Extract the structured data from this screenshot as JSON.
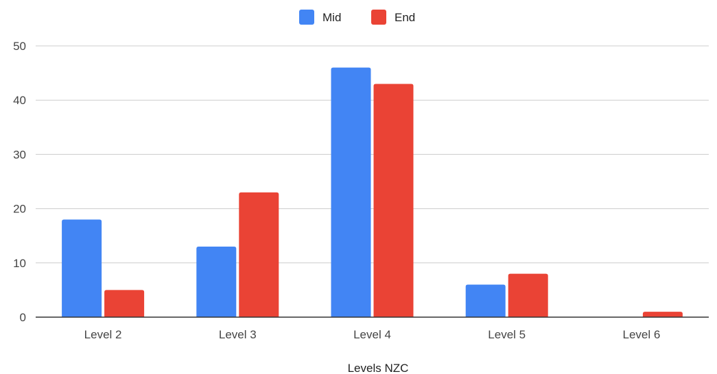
{
  "chart_data": {
    "type": "bar",
    "title": "",
    "xlabel": "Levels NZC",
    "ylabel": "",
    "categories": [
      "Level 2",
      "Level 3",
      "Level 4",
      "Level 5",
      "Level 6"
    ],
    "series": [
      {
        "name": "Mid",
        "values": [
          18,
          13,
          46,
          6,
          0
        ],
        "color": "#4285f4"
      },
      {
        "name": "End",
        "values": [
          5,
          23,
          43,
          8,
          1
        ],
        "color": "#ea4335"
      }
    ],
    "ylim": [
      0,
      50
    ],
    "yticks": [
      0,
      10,
      20,
      30,
      40,
      50
    ],
    "grid": true,
    "legend": "top-center"
  }
}
